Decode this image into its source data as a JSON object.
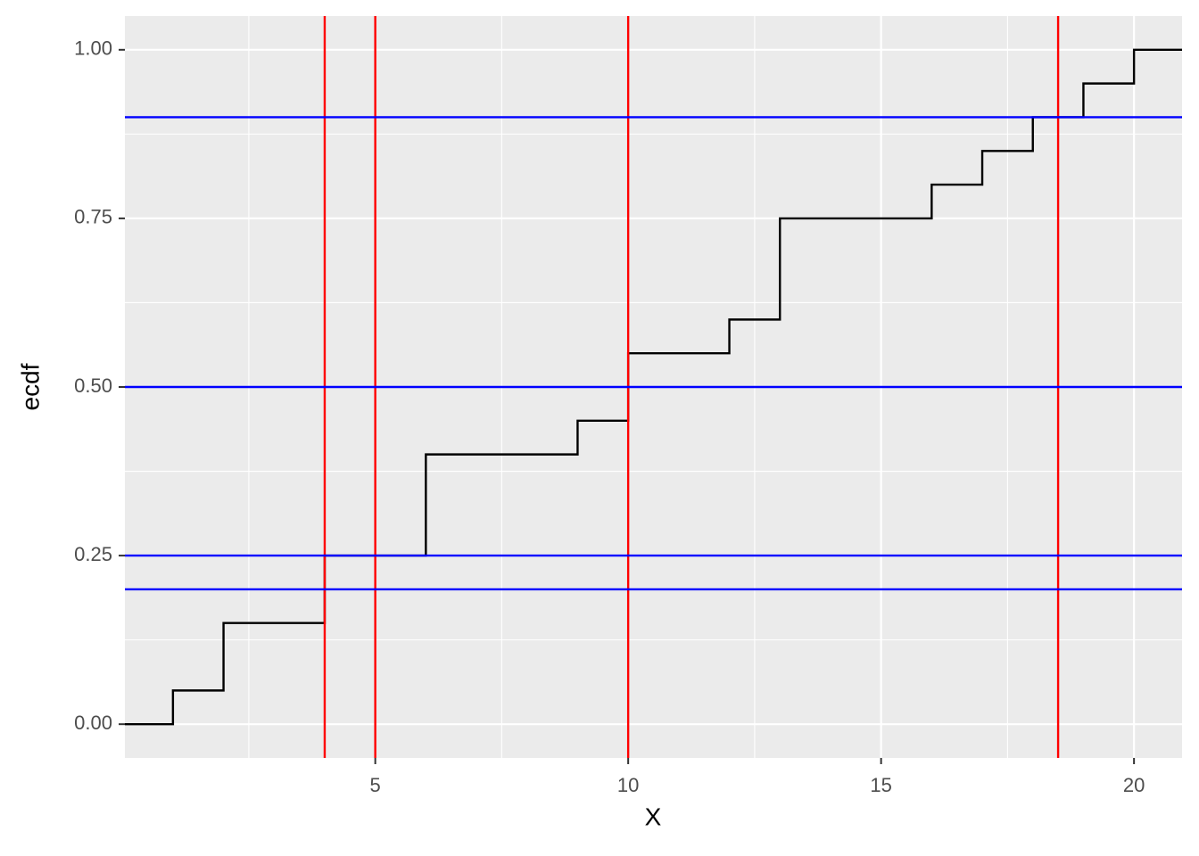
{
  "chart_data": {
    "type": "step",
    "x_label": "X",
    "y_label": "ecdf",
    "x": [
      0.05,
      1,
      2,
      4,
      6,
      9,
      10,
      12,
      13,
      16,
      17,
      18,
      19,
      20,
      20.95
    ],
    "values": [
      0,
      0.05,
      0.15,
      0.25,
      0.4,
      0.45,
      0.55,
      0.6,
      0.75,
      0.8,
      0.85,
      0.9,
      0.95,
      1,
      1
    ],
    "color": "#000000",
    "vlines": {
      "values": [
        4,
        5,
        10,
        18.5
      ],
      "color": "#ff0000"
    },
    "hlines": {
      "values": [
        0.2,
        0.25,
        0.5,
        0.9
      ],
      "color": "#0000ff"
    },
    "xlim": [
      0.05,
      20.95
    ],
    "ylim": [
      -0.05,
      1.05
    ],
    "xticks": [
      5,
      10,
      15,
      20
    ],
    "yticks": [
      {
        "value": 0,
        "label": "0.00"
      },
      {
        "value": 0.25,
        "label": "0.25"
      },
      {
        "value": 0.5,
        "label": "0.50"
      },
      {
        "value": 0.75,
        "label": "0.75"
      },
      {
        "value": 1,
        "label": "1.00"
      }
    ],
    "x_minor_ticks": [
      2.5,
      7.5,
      12.5,
      17.5
    ],
    "y_minor_ticks": [
      0.125,
      0.375,
      0.625,
      0.875
    ],
    "grid": true
  }
}
